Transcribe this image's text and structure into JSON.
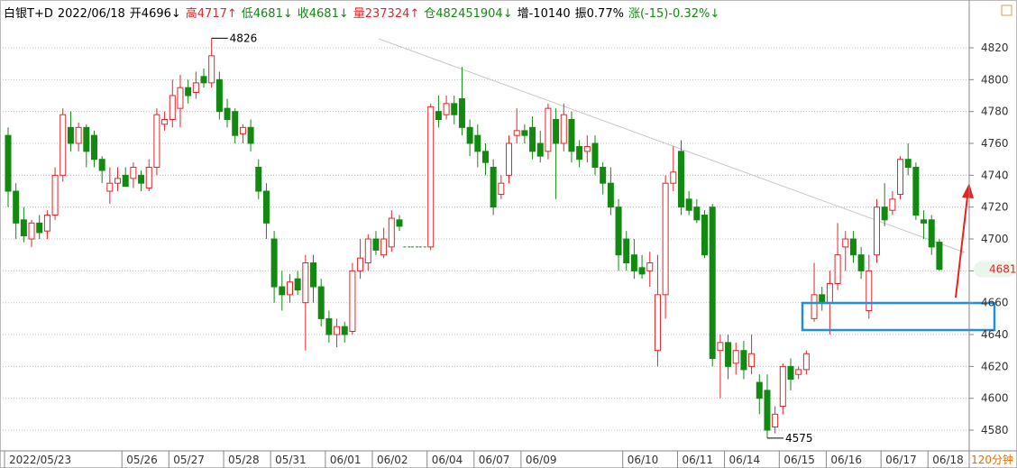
{
  "chart_data": {
    "type": "candlestick",
    "header": [
      {
        "text": "白银T+D",
        "color": "#000000"
      },
      {
        "text": "2022/06/18",
        "color": "#000000"
      },
      {
        "text": "开4696↓",
        "color": "#000000"
      },
      {
        "text": "高4717↑",
        "color": "#e0262b"
      },
      {
        "text": "低4681↓",
        "color": "#128a12"
      },
      {
        "text": "收4681↓",
        "color": "#128a12"
      },
      {
        "text": "量237324↑",
        "color": "#e0262b"
      },
      {
        "text": "仓482451904↓",
        "color": "#128a12"
      },
      {
        "text": "增-10140",
        "color": "#000000"
      },
      {
        "text": "振0.77%",
        "color": "#000000"
      },
      {
        "text": "涨(-15)-0.32%↓",
        "color": "#128a12"
      }
    ],
    "x": [
      "2022/05/23",
      null,
      null,
      null,
      null,
      null,
      null,
      null,
      null,
      null,
      null,
      null,
      null,
      null,
      null,
      "05/26",
      null,
      null,
      null,
      null,
      null,
      "05/27",
      null,
      null,
      null,
      null,
      null,
      null,
      "05/28",
      null,
      null,
      null,
      null,
      null,
      "05/31",
      null,
      null,
      null,
      null,
      null,
      null,
      "06/01",
      null,
      null,
      null,
      null,
      null,
      "06/02",
      null,
      null,
      null,
      null,
      null,
      null,
      "06/04",
      null,
      null,
      null,
      null,
      null,
      "06/07",
      null,
      null,
      null,
      null,
      null,
      "06/09",
      null,
      null,
      null,
      null,
      null,
      null,
      null,
      null,
      null,
      null,
      null,
      null,
      "06/10",
      null,
      null,
      null,
      null,
      null,
      null,
      "06/11",
      null,
      null,
      null,
      null,
      null,
      "06/14",
      null,
      null,
      null,
      null,
      null,
      null,
      "06/15",
      null,
      null,
      null,
      null,
      null,
      "06/16",
      null,
      null,
      null,
      null,
      null,
      null,
      "06/17",
      null,
      null,
      null,
      null,
      null,
      "06/18",
      null
    ],
    "open": [
      4765,
      4730,
      4712,
      4700,
      4710,
      4705,
      4715,
      4740,
      4770,
      4760,
      4770,
      4765,
      4750,
      4730,
      4735,
      4740,
      4738,
      4740,
      4732,
      4745,
      4772,
      4775,
      4782,
      4795,
      4792,
      4802,
      4798,
      4800,
      4782,
      4780,
      4766,
      4770,
      4745,
      4730,
      4700,
      4670,
      4665,
      4675,
      4660,
      4685,
      4670,
      4650,
      4640,
      4645,
      4642,
      4680,
      4685,
      4700,
      4690,
      4695,
      4712,
      4695,
      4695,
      4695,
      4695,
      4780,
      4778,
      4785,
      4788,
      4770,
      4765,
      4755,
      4745,
      4728,
      4740,
      4765,
      4768,
      4770,
      4760,
      4755,
      4775,
      4760,
      4775,
      4758,
      4755,
      4760,
      4745,
      4735,
      4720,
      4700,
      4690,
      4682,
      4680,
      4630,
      4665,
      4735,
      4755,
      4725,
      4720,
      4715,
      4720,
      4630,
      4635,
      4622,
      4630,
      4620,
      4610,
      4605,
      4582,
      4595,
      4620,
      4615,
      4618,
      4650,
      4665,
      4660,
      4672,
      4695,
      4700,
      4690,
      4655,
      4690,
      4720,
      4718,
      4728,
      4750,
      4745,
      4712,
      4712,
      4698
    ],
    "high": [
      4770,
      4735,
      4720,
      4712,
      4715,
      4718,
      4745,
      4782,
      4780,
      4773,
      4772,
      4768,
      4752,
      4745,
      4745,
      4745,
      4748,
      4743,
      4750,
      4782,
      4780,
      4800,
      4803,
      4800,
      4805,
      4807,
      4826,
      4805,
      4788,
      4782,
      4772,
      4775,
      4750,
      4735,
      4705,
      4680,
      4678,
      4680,
      4690,
      4690,
      4675,
      4655,
      4650,
      4648,
      4685,
      4700,
      4703,
      4705,
      4707,
      4718,
      4715,
      4695,
      4695,
      4695,
      4785,
      4790,
      4790,
      4790,
      4808,
      4775,
      4772,
      4760,
      4750,
      4740,
      4765,
      4782,
      4772,
      4777,
      4768,
      4785,
      4782,
      4785,
      4780,
      4762,
      4765,
      4765,
      4748,
      4745,
      4725,
      4705,
      4700,
      4690,
      4692,
      4690,
      4740,
      4758,
      4762,
      4730,
      4725,
      4718,
      4722,
      4640,
      4640,
      4635,
      4636,
      4640,
      4615,
      4615,
      4595,
      4622,
      4625,
      4620,
      4630,
      4685,
      4670,
      4680,
      4710,
      4705,
      4705,
      4695,
      4690,
      4725,
      4735,
      4730,
      4752,
      4760,
      4748,
      4718,
      4715,
      4700
    ],
    "low": [
      4720,
      4700,
      4698,
      4695,
      4700,
      4700,
      4712,
      4736,
      4755,
      4755,
      4745,
      4745,
      4735,
      4722,
      4730,
      4735,
      4732,
      4730,
      4730,
      4740,
      4768,
      4770,
      4770,
      4785,
      4788,
      4795,
      4795,
      4775,
      4770,
      4760,
      4760,
      4755,
      4725,
      4700,
      4660,
      4655,
      4660,
      4665,
      4630,
      4660,
      4645,
      4635,
      4632,
      4635,
      4640,
      4675,
      4680,
      4690,
      4688,
      4692,
      4705,
      4695,
      4695,
      4695,
      4693,
      4770,
      4775,
      4772,
      4765,
      4752,
      4745,
      4740,
      4715,
      4725,
      4735,
      4760,
      4760,
      4750,
      4748,
      4750,
      4725,
      4755,
      4748,
      4745,
      4748,
      4740,
      4728,
      4715,
      4680,
      4680,
      4675,
      4675,
      4670,
      4620,
      4650,
      4730,
      4715,
      4715,
      4710,
      4688,
      4620,
      4600,
      4612,
      4615,
      4612,
      4615,
      4590,
      4575,
      4578,
      4590,
      4605,
      4612,
      4615,
      4648,
      4655,
      4640,
      4668,
      4680,
      4685,
      4675,
      4650,
      4685,
      4708,
      4715,
      4725,
      4740,
      4712,
      4700,
      4690,
      4680
    ],
    "close": [
      4730,
      4710,
      4702,
      4710,
      4704,
      4715,
      4740,
      4778,
      4760,
      4770,
      4755,
      4750,
      4743,
      4735,
      4738,
      4733,
      4745,
      4735,
      4745,
      4778,
      4775,
      4790,
      4795,
      4790,
      4798,
      4798,
      4815,
      4780,
      4775,
      4765,
      4770,
      4760,
      4730,
      4710,
      4670,
      4665,
      4673,
      4668,
      4685,
      4670,
      4650,
      4640,
      4645,
      4640,
      4680,
      4688,
      4700,
      4693,
      4700,
      4713,
      4708,
      4695,
      4695,
      4695,
      4783,
      4775,
      4785,
      4778,
      4770,
      4760,
      4755,
      4748,
      4720,
      4735,
      4760,
      4768,
      4765,
      4755,
      4752,
      4782,
      4760,
      4778,
      4755,
      4750,
      4758,
      4745,
      4735,
      4720,
      4690,
      4685,
      4680,
      4678,
      4685,
      4665,
      4735,
      4742,
      4720,
      4718,
      4712,
      4690,
      4625,
      4635,
      4620,
      4630,
      4618,
      4628,
      4600,
      4580,
      4590,
      4620,
      4612,
      4618,
      4628,
      4665,
      4660,
      4672,
      4690,
      4700,
      4690,
      4680,
      4680,
      4720,
      4712,
      4725,
      4750,
      4745,
      4715,
      4710,
      4695,
      4681
    ],
    "up_color": "#e0262b",
    "down_color": "#128a12",
    "ylim": [
      4567,
      4850
    ],
    "yticks": [
      4580,
      4600,
      4620,
      4640,
      4660,
      4680,
      4700,
      4720,
      4740,
      4760,
      4780,
      4800,
      4820
    ],
    "grid": true,
    "max_label": 4826,
    "min_label": 4575,
    "last_price": 4681,
    "period": "120分钟"
  }
}
